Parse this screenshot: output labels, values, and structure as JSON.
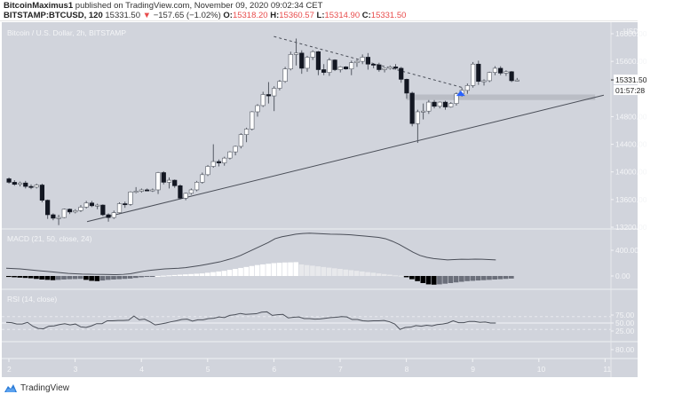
{
  "header": {
    "author": "BitcoinMaximus1",
    "published": "published on TradingView.com, November 09, 2020 09:02:34 CET",
    "symbol": "BITSTAMP:BTCUSD, 120",
    "last": "15331.50",
    "change_arrow": "▼",
    "change": "−157.65 (−1.02%)",
    "o_label": "O:",
    "o": "15318.20",
    "h_label": "H:",
    "h": "15360.57",
    "l_label": "L:",
    "l": "15314.90",
    "c_label": "C:",
    "c": "15331.50"
  },
  "footer": {
    "brand": "TradingView"
  },
  "colors": {
    "background": "#d1d4dc",
    "grid": "#dfe1e6",
    "axis_text": "#f4f5f7",
    "up_candle": "#ffffff",
    "down_candle": "#131722",
    "support_box": "#b2b5be",
    "arrow": "#2962ff",
    "price_red": "#e84c4c"
  },
  "chart_data": [
    {
      "type": "candlestick",
      "title": "Bitcoin / U.S. Dollar, 2h, BITSTAMP",
      "currency_label": "USD",
      "ylabel": "USD",
      "yticks": [
        16000,
        15600,
        15200,
        14800,
        14400,
        14000,
        13600,
        13200
      ],
      "ytick_labels": [
        "16000.00",
        "15600.00",
        "",
        "14800.00",
        "14400.00",
        "14000.00",
        "13600.00",
        "13200.00"
      ],
      "ylim": [
        13150,
        16150
      ],
      "xticks": [
        "2",
        "3",
        "4",
        "5",
        "6",
        "7",
        "8",
        "9",
        "10",
        "11"
      ],
      "last_price_label": "15331.50",
      "countdown_label": "01:57:28",
      "candles": [
        [
          13900,
          13920,
          13830,
          13850
        ],
        [
          13850,
          13880,
          13800,
          13820
        ],
        [
          13820,
          13860,
          13790,
          13840
        ],
        [
          13840,
          13870,
          13760,
          13790
        ],
        [
          13790,
          13820,
          13750,
          13780
        ],
        [
          13780,
          13830,
          13760,
          13810
        ],
        [
          13810,
          13830,
          13560,
          13590
        ],
        [
          13590,
          13600,
          13320,
          13380
        ],
        [
          13380,
          13400,
          13300,
          13330
        ],
        [
          13330,
          13380,
          13230,
          13340
        ],
        [
          13340,
          13470,
          13330,
          13460
        ],
        [
          13460,
          13470,
          13390,
          13420
        ],
        [
          13420,
          13460,
          13400,
          13440
        ],
        [
          13440,
          13520,
          13420,
          13490
        ],
        [
          13490,
          13580,
          13470,
          13550
        ],
        [
          13550,
          13580,
          13490,
          13510
        ],
        [
          13510,
          13540,
          13460,
          13520
        ],
        [
          13520,
          13530,
          13360,
          13380
        ],
        [
          13380,
          13400,
          13280,
          13340
        ],
        [
          13340,
          13440,
          13320,
          13410
        ],
        [
          13410,
          13560,
          13390,
          13540
        ],
        [
          13540,
          13570,
          13480,
          13530
        ],
        [
          13530,
          13720,
          13510,
          13710
        ],
        [
          13710,
          13780,
          13690,
          13720
        ],
        [
          13720,
          13760,
          13700,
          13740
        ],
        [
          13740,
          13760,
          13720,
          13730
        ],
        [
          13730,
          13760,
          13710,
          13740
        ],
        [
          13740,
          14000,
          13680,
          13990
        ],
        [
          13990,
          14010,
          13820,
          13850
        ],
        [
          13850,
          13920,
          13760,
          13880
        ],
        [
          13880,
          13890,
          13770,
          13800
        ],
        [
          13800,
          13820,
          13600,
          13620
        ],
        [
          13620,
          13700,
          13590,
          13690
        ],
        [
          13690,
          13760,
          13670,
          13740
        ],
        [
          13740,
          13870,
          13720,
          13850
        ],
        [
          13850,
          13990,
          13830,
          13960
        ],
        [
          13960,
          14100,
          13940,
          14080
        ],
        [
          14080,
          14400,
          14060,
          14150
        ],
        [
          14150,
          14180,
          14080,
          14130
        ],
        [
          14130,
          14220,
          14090,
          14200
        ],
        [
          14200,
          14300,
          14180,
          14290
        ],
        [
          14290,
          14380,
          14240,
          14370
        ],
        [
          14370,
          14560,
          14340,
          14540
        ],
        [
          14540,
          14640,
          14430,
          14620
        ],
        [
          14620,
          14880,
          14600,
          14870
        ],
        [
          14870,
          14980,
          14800,
          14960
        ],
        [
          14960,
          15160,
          14940,
          15120
        ],
        [
          15120,
          15300,
          14990,
          15100
        ],
        [
          15100,
          15240,
          14880,
          15210
        ],
        [
          15210,
          15330,
          15180,
          15310
        ],
        [
          15310,
          15520,
          15290,
          15490
        ],
        [
          15490,
          15740,
          15470,
          15700
        ],
        [
          15700,
          15930,
          15540,
          15720
        ],
        [
          15720,
          15760,
          15420,
          15500
        ],
        [
          15500,
          15680,
          15450,
          15660
        ],
        [
          15660,
          15760,
          15620,
          15740
        ],
        [
          15740,
          15750,
          15400,
          15480
        ],
        [
          15480,
          15560,
          15400,
          15440
        ],
        [
          15440,
          15650,
          15390,
          15620
        ],
        [
          15620,
          15630,
          15460,
          15480
        ],
        [
          15480,
          15530,
          15440,
          15520
        ],
        [
          15520,
          15530,
          15480,
          15490
        ],
        [
          15490,
          15610,
          15400,
          15580
        ],
        [
          15580,
          15620,
          15520,
          15600
        ],
        [
          15600,
          15700,
          15560,
          15660
        ],
        [
          15660,
          15720,
          15480,
          15560
        ],
        [
          15560,
          15570,
          15500,
          15550
        ],
        [
          15550,
          15580,
          15450,
          15480
        ],
        [
          15480,
          15510,
          15440,
          15500
        ],
        [
          15500,
          15540,
          15480,
          15520
        ],
        [
          15520,
          15560,
          15480,
          15500
        ],
        [
          15500,
          15520,
          15290,
          15340
        ],
        [
          15340,
          15350,
          15060,
          15140
        ],
        [
          15140,
          15160,
          14660,
          14700
        ],
        [
          14700,
          14900,
          14420,
          14870
        ],
        [
          14870,
          14990,
          14760,
          14880
        ],
        [
          14880,
          15040,
          14840,
          15010
        ],
        [
          15010,
          15040,
          14920,
          14950
        ],
        [
          14950,
          15020,
          14920,
          15010
        ],
        [
          15010,
          15030,
          14900,
          14940
        ],
        [
          14940,
          15010,
          14930,
          14990
        ],
        [
          14990,
          15150,
          14960,
          15130
        ],
        [
          15130,
          15220,
          15090,
          15180
        ],
        [
          15180,
          15280,
          15130,
          15250
        ],
        [
          15250,
          15590,
          15220,
          15560
        ],
        [
          15560,
          15610,
          15260,
          15310
        ],
        [
          15310,
          15340,
          15250,
          15320
        ],
        [
          15320,
          15450,
          15300,
          15440
        ],
        [
          15440,
          15530,
          15400,
          15500
        ],
        [
          15500,
          15530,
          15400,
          15430
        ],
        [
          15430,
          15470,
          15390,
          15450
        ],
        [
          15450,
          15460,
          15300,
          15320
        ],
        [
          15320,
          15360,
          15310,
          15330
        ]
      ],
      "trendlines": [
        {
          "name": "ascending support",
          "style": "solid",
          "from": {
            "x_day": 3.18,
            "price": 13280
          },
          "to": {
            "x_day": 10.98,
            "price": 15110
          }
        },
        {
          "name": "descending resistance",
          "style": "dashed",
          "from": {
            "x_day": 6.0,
            "price": 15960
          },
          "to": {
            "x_day": 8.85,
            "price": 15220
          }
        }
      ],
      "support_zone": {
        "from_day": 8.0,
        "to_day": 10.85,
        "price_low": 15040,
        "price_high": 15120
      },
      "markers": [
        {
          "type": "up-arrow",
          "x_day": 8.82,
          "price": 15150
        }
      ]
    },
    {
      "type": "bar+line",
      "title": "MACD (21, 50, close, 24)",
      "yticks": [
        400,
        0
      ],
      "ytick_labels": [
        "400.00",
        "0.00"
      ],
      "ylim": [
        -150,
        700
      ],
      "macd_line": [
        120,
        115,
        110,
        100,
        90,
        80,
        70,
        60,
        50,
        40,
        35,
        30,
        28,
        25,
        24,
        22,
        20,
        25,
        35,
        55,
        75,
        90,
        100,
        110,
        115,
        120,
        130,
        145,
        160,
        180,
        200,
        220,
        250,
        280,
        320,
        370,
        420,
        470,
        520,
        580,
        610,
        630,
        650,
        660,
        665,
        660,
        655,
        650,
        648,
        645,
        640,
        630,
        620,
        610,
        600,
        580,
        540,
        490,
        430,
        370,
        320,
        290,
        270,
        260,
        250,
        255,
        260,
        258,
        262,
        260,
        255,
        250
      ],
      "histogram": [
        -15,
        -20,
        -25,
        -30,
        -35,
        -45,
        -55,
        -60,
        -65,
        -60,
        -55,
        -50,
        -48,
        -45,
        -60,
        -75,
        -80,
        -70,
        -60,
        -55,
        -50,
        -45,
        -40,
        -30,
        -20,
        -10,
        -5,
        0,
        5,
        10,
        15,
        20,
        25,
        30,
        35,
        40,
        50,
        60,
        70,
        80,
        95,
        110,
        125,
        140,
        155,
        170,
        180,
        190,
        200,
        205,
        210,
        212,
        215,
        180,
        170,
        160,
        150,
        140,
        130,
        120,
        110,
        100,
        90,
        80,
        70,
        60,
        50,
        40,
        30,
        20,
        10,
        5,
        -20,
        -50,
        -80,
        -110,
        -130,
        -135,
        -130,
        -120,
        -110,
        -100,
        -90,
        -80,
        -75,
        -70,
        -65,
        -60,
        -55,
        -50,
        -45,
        -40
      ]
    },
    {
      "type": "line",
      "title": "RSI (14, close)",
      "yticks": [
        75,
        50,
        25
      ],
      "ytick_labels": [
        "75.00",
        "50.00",
        "25.00"
      ],
      "ylim": [
        0,
        100
      ],
      "bands": {
        "upper": 70,
        "middle": 50,
        "lower": 30
      },
      "values": [
        52,
        51,
        47,
        47,
        52,
        40,
        33,
        32,
        40,
        41,
        45,
        48,
        44,
        47,
        38,
        36,
        41,
        48,
        48,
        57,
        57,
        58,
        58,
        59,
        72,
        60,
        62,
        54,
        44,
        47,
        50,
        54,
        57,
        61,
        62,
        56,
        60,
        60,
        64,
        65,
        69,
        67,
        74,
        76,
        80,
        77,
        78,
        79,
        84,
        85,
        74,
        76,
        77,
        66,
        68,
        69,
        64,
        64,
        62,
        63,
        65,
        67,
        68,
        70,
        69,
        61,
        61,
        57,
        56,
        57,
        57,
        58,
        54,
        47,
        30,
        36,
        37,
        42,
        40,
        43,
        41,
        45,
        47,
        50,
        57,
        51,
        51,
        55,
        55,
        52,
        53,
        50,
        50
      ]
    },
    {
      "type": "empty-pane",
      "ytick_labels": [
        "80.00"
      ]
    }
  ]
}
